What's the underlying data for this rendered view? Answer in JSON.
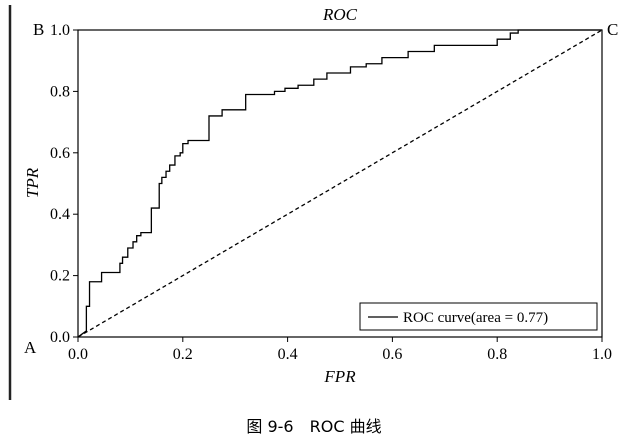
{
  "chart_data": {
    "type": "line",
    "title": "ROC",
    "xlabel": "FPR",
    "ylabel": "TPR",
    "xlim": [
      0.0,
      1.0
    ],
    "ylim": [
      0.0,
      1.0
    ],
    "xticks": [
      "0.0",
      "0.2",
      "0.4",
      "0.6",
      "0.8",
      "1.0"
    ],
    "yticks": [
      "0.0",
      "0.2",
      "0.4",
      "0.6",
      "0.8",
      "1.0"
    ],
    "grid": false,
    "legend": {
      "position": "bottom-right",
      "label": "ROC curve(area = 0.77)"
    },
    "series": [
      {
        "name": "ROC curve(area = 0.77)",
        "style": "solid",
        "color": "#000000",
        "x": [
          0.0,
          0.008,
          0.016,
          0.016,
          0.022,
          0.022,
          0.03,
          0.045,
          0.045,
          0.08,
          0.08,
          0.085,
          0.085,
          0.095,
          0.095,
          0.105,
          0.105,
          0.112,
          0.112,
          0.12,
          0.12,
          0.14,
          0.14,
          0.155,
          0.155,
          0.16,
          0.16,
          0.168,
          0.168,
          0.175,
          0.175,
          0.185,
          0.185,
          0.195,
          0.195,
          0.2,
          0.2,
          0.21,
          0.21,
          0.25,
          0.25,
          0.275,
          0.275,
          0.32,
          0.32,
          0.375,
          0.375,
          0.395,
          0.395,
          0.42,
          0.42,
          0.45,
          0.45,
          0.475,
          0.475,
          0.52,
          0.52,
          0.55,
          0.55,
          0.58,
          0.58,
          0.63,
          0.63,
          0.68,
          0.68,
          0.8,
          0.8,
          0.825,
          0.825,
          0.84,
          0.84,
          1.0
        ],
        "y": [
          0.0,
          0.01,
          0.02,
          0.1,
          0.1,
          0.18,
          0.18,
          0.18,
          0.21,
          0.21,
          0.24,
          0.24,
          0.26,
          0.26,
          0.29,
          0.29,
          0.31,
          0.31,
          0.33,
          0.33,
          0.34,
          0.34,
          0.42,
          0.42,
          0.5,
          0.5,
          0.52,
          0.52,
          0.54,
          0.54,
          0.56,
          0.56,
          0.59,
          0.59,
          0.6,
          0.6,
          0.63,
          0.63,
          0.64,
          0.64,
          0.72,
          0.72,
          0.74,
          0.74,
          0.79,
          0.79,
          0.8,
          0.8,
          0.81,
          0.81,
          0.82,
          0.82,
          0.84,
          0.84,
          0.86,
          0.86,
          0.88,
          0.88,
          0.89,
          0.89,
          0.91,
          0.91,
          0.93,
          0.93,
          0.95,
          0.95,
          0.97,
          0.97,
          0.99,
          0.99,
          1.0,
          1.0
        ]
      },
      {
        "name": "",
        "style": "dashed",
        "color": "#000000",
        "x": [
          0.0,
          1.0
        ],
        "y": [
          0.0,
          1.0
        ]
      }
    ],
    "annotations": {
      "corner_a": "A",
      "corner_b": "B",
      "corner_c": "C"
    }
  },
  "caption": "图 9-6　ROC 曲线"
}
